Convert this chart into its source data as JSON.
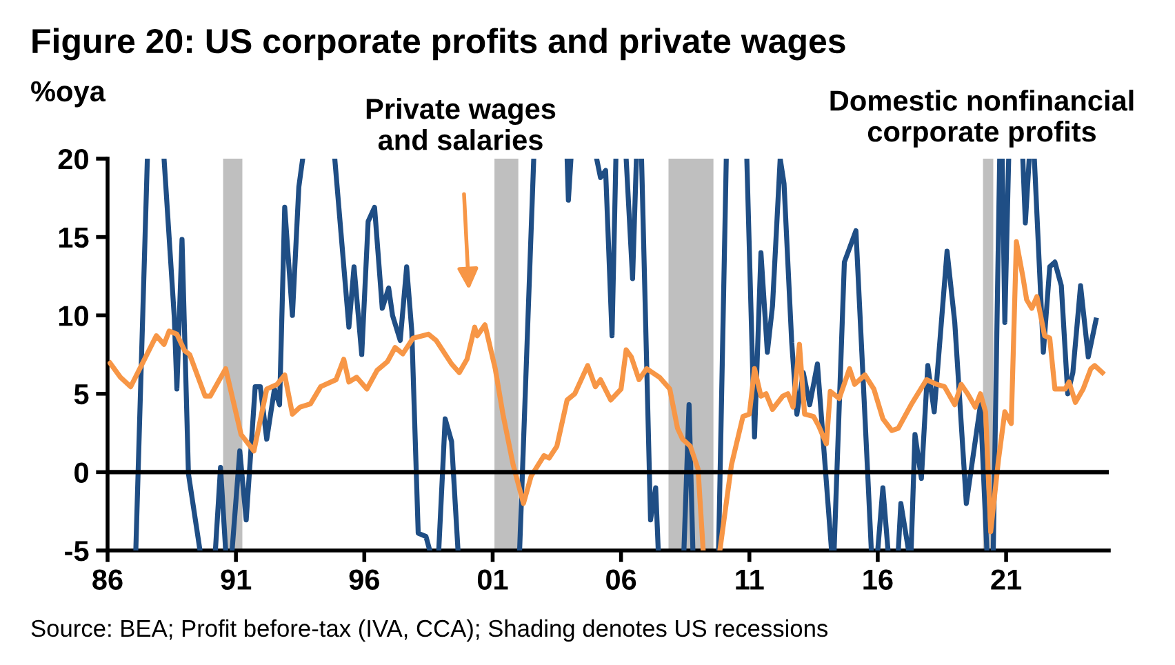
{
  "chart_data": {
    "type": "line",
    "title": "Figure 20: US corporate profits and private wages",
    "ylabel": "%oya",
    "xlim": [
      1986,
      2025
    ],
    "ylim": [
      -5,
      20
    ],
    "xticks": [
      {
        "value": 1986,
        "label": "86"
      },
      {
        "value": 1991,
        "label": "91"
      },
      {
        "value": 1996,
        "label": "96"
      },
      {
        "value": 2001,
        "label": "01"
      },
      {
        "value": 2006,
        "label": "06"
      },
      {
        "value": 2011,
        "label": "11"
      },
      {
        "value": 2016,
        "label": "16"
      },
      {
        "value": 2021,
        "label": "21"
      }
    ],
    "yticks": [
      -5,
      0,
      5,
      10,
      15,
      20
    ],
    "grid": false,
    "legend": false,
    "line_style": "solid",
    "ref_lines": [
      {
        "axis": "y",
        "value": 0,
        "label": null,
        "color": "#000000"
      }
    ],
    "bands": [
      {
        "axis": "x",
        "from": 1990.5,
        "to": 1991.25,
        "label": null,
        "color": "#bfbfbf"
      },
      {
        "axis": "x",
        "from": 2001.07,
        "to": 2002.0,
        "label": null,
        "color": "#bfbfbf"
      },
      {
        "axis": "x",
        "from": 2007.85,
        "to": 2009.6,
        "label": null,
        "color": "#bfbfbf"
      },
      {
        "axis": "x",
        "from": 2020.1,
        "to": 2020.5,
        "label": null,
        "color": "#bfbfbf"
      }
    ],
    "series": [
      {
        "color": "#1f4e85",
        "x": [
          1987.1,
          1987.55,
          1987.9,
          1988.2,
          1988.6,
          1988.7,
          1988.9,
          1989.15,
          1989.6,
          1989.9,
          1990.2,
          1990.4,
          1990.6,
          1990.7,
          1990.85,
          1991.15,
          1991.4,
          1991.75,
          1991.95,
          1992.2,
          1992.5,
          1992.7,
          1992.9,
          1993.2,
          1993.45,
          1993.6,
          1994.2,
          1994.85,
          1995.4,
          1995.6,
          1995.9,
          1996.15,
          1996.4,
          1996.7,
          1996.95,
          1997.1,
          1997.4,
          1997.65,
          1997.85,
          1998.1,
          1998.4,
          1998.55,
          1998.7,
          1998.9,
          1999.15,
          1999.4,
          1999.65,
          2000.8,
          2002.05,
          2002.6,
          2003.2,
          2003.9,
          2003.95,
          2004.05,
          2004.5,
          2005.05,
          2005.2,
          2005.4,
          2005.65,
          2005.8,
          2006.0,
          2006.2,
          2006.45,
          2006.6,
          2006.7,
          2006.8,
          2007.15,
          2007.35,
          2007.45,
          2008.0,
          2008.45,
          2008.65,
          2008.8,
          2009.3,
          2009.8,
          2010.1,
          2010.5,
          2010.9,
          2011.2,
          2011.45,
          2011.7,
          2011.9,
          2012.2,
          2012.35,
          2012.65,
          2012.85,
          2013.1,
          2013.35,
          2013.65,
          2014.2,
          2014.25,
          2014.3,
          2014.7,
          2015.15,
          2015.6,
          2015.75,
          2015.9,
          2016.0,
          2016.2,
          2016.4,
          2016.6,
          2016.8,
          2016.9,
          2017.2,
          2017.25,
          2017.3,
          2017.45,
          2017.7,
          2017.95,
          2018.2,
          2018.7,
          2019.0,
          2019.45,
          2020.0,
          2020.25,
          2020.4,
          2020.5,
          2020.75,
          2020.8,
          2020.85,
          2020.95,
          2021.1,
          2021.4,
          2021.65,
          2021.75,
          2021.9,
          2022.0,
          2022.1,
          2022.45,
          2022.7,
          2022.9,
          2023.15,
          2023.4,
          2023.6,
          2023.9,
          2024.2,
          2024.5
        ],
        "values": [
          -5,
          20,
          null,
          20,
          9.85,
          5.3,
          14.85,
          -0.1,
          -5,
          null,
          -5,
          0.3,
          -5,
          null,
          -5,
          1.35,
          -3.05,
          5.45,
          5.45,
          2.1,
          5.3,
          4.3,
          16.9,
          10.0,
          18.2,
          20,
          null,
          20,
          9.25,
          13.1,
          7.5,
          16.0,
          16.9,
          10.45,
          11.75,
          10.0,
          8.4,
          13.1,
          9.0,
          -3.9,
          -4.1,
          -5,
          null,
          -5,
          3.4,
          1.95,
          -5,
          null,
          -5,
          20,
          null,
          20,
          17.35,
          20,
          null,
          20,
          18.8,
          19.25,
          8.7,
          20,
          null,
          20,
          12.35,
          20,
          null,
          20,
          -3.05,
          -1.0,
          -5,
          null,
          -5,
          4.3,
          -5,
          null,
          -5,
          20,
          null,
          20,
          2.25,
          14.0,
          7.65,
          10.6,
          20,
          18.4,
          8.25,
          3.7,
          6.35,
          4.3,
          6.9,
          -5,
          null,
          -5,
          13.4,
          15.4,
          0.2,
          -5,
          null,
          -5,
          -1.0,
          -5,
          null,
          -5,
          -2.0,
          -5,
          null,
          -5,
          2.4,
          -0.4,
          6.8,
          3.85,
          14.1,
          9.55,
          -2.0,
          4.3,
          -5,
          null,
          -5,
          20,
          null,
          20,
          9.55,
          20,
          null,
          20,
          15.9,
          20,
          null,
          20,
          7.65,
          13.1,
          13.4,
          11.9,
          5.0,
          6.35,
          11.9,
          7.35,
          9.7
        ]
      },
      {
        "color": "#f79646",
        "x": [
          1986.1,
          1986.5,
          1986.9,
          1987.9,
          1988.2,
          1988.4,
          1988.7,
          1989.0,
          1989.2,
          1989.8,
          1990.0,
          1990.6,
          1991.2,
          1991.7,
          1992.2,
          1992.6,
          1992.9,
          1993.2,
          1993.5,
          1993.9,
          1994.3,
          1994.9,
          1995.2,
          1995.4,
          1995.7,
          1996.1,
          1996.5,
          1996.9,
          1997.2,
          1997.5,
          1997.9,
          1998.5,
          1998.8,
          1999.4,
          1999.7,
          2000.0,
          2000.3,
          2000.4,
          2000.7,
          2001.1,
          2001.4,
          2001.8,
          2002.2,
          2002.5,
          2003.0,
          2003.2,
          2003.5,
          2003.9,
          2004.2,
          2004.7,
          2005.0,
          2005.2,
          2005.6,
          2006.0,
          2006.2,
          2006.4,
          2006.7,
          2007.0,
          2007.5,
          2007.9,
          2008.2,
          2008.4,
          2008.7,
          2009.0,
          2009.2,
          2009.5,
          2009.85,
          2010.3,
          2010.75,
          2011.0,
          2011.2,
          2011.45,
          2011.65,
          2011.9,
          2012.3,
          2012.5,
          2012.7,
          2012.95,
          2013.15,
          2013.5,
          2013.7,
          2014.0,
          2014.15,
          2014.5,
          2014.9,
          2015.1,
          2015.5,
          2015.85,
          2016.2,
          2016.55,
          2016.8,
          2017.3,
          2017.9,
          2018.3,
          2018.6,
          2019.0,
          2019.25,
          2019.5,
          2019.8,
          2020.0,
          2020.2,
          2020.4,
          2020.7,
          2020.95,
          2021.2,
          2021.4,
          2021.65,
          2021.8,
          2022.0,
          2022.2,
          2022.5,
          2022.7,
          2022.9,
          2023.3,
          2023.45,
          2023.7,
          2024.0,
          2024.3,
          2024.45,
          2024.75
        ],
        "values": [
          6.95,
          6.05,
          5.45,
          8.7,
          8.15,
          9.0,
          8.8,
          7.75,
          7.5,
          4.85,
          4.85,
          6.6,
          2.4,
          1.35,
          5.3,
          5.6,
          6.2,
          3.7,
          4.15,
          4.35,
          5.45,
          5.9,
          7.2,
          5.75,
          6.05,
          5.3,
          6.5,
          7.05,
          7.95,
          7.55,
          8.55,
          8.8,
          8.4,
          6.9,
          6.35,
          7.2,
          9.25,
          8.7,
          9.4,
          6.6,
          3.7,
          0.45,
          -2.0,
          -0.25,
          1.05,
          0.9,
          1.65,
          4.6,
          5.0,
          6.8,
          5.45,
          5.9,
          4.6,
          5.3,
          7.8,
          7.35,
          5.9,
          6.6,
          6.05,
          5.3,
          2.8,
          2.1,
          1.65,
          0.2,
          -5,
          null,
          -5,
          0.45,
          3.55,
          3.7,
          6.6,
          4.85,
          5.0,
          4.0,
          4.85,
          5.0,
          4.15,
          8.15,
          3.7,
          3.55,
          2.95,
          1.8,
          5.15,
          4.7,
          6.6,
          5.6,
          6.2,
          5.3,
          3.4,
          2.65,
          2.8,
          4.3,
          5.9,
          5.6,
          5.45,
          4.3,
          5.6,
          5.0,
          4.15,
          5.0,
          3.85,
          -3.8,
          0.75,
          3.85,
          3.1,
          14.7,
          12.5,
          11.0,
          10.45,
          11.2,
          8.7,
          8.55,
          5.3,
          5.3,
          5.75,
          4.45,
          5.3,
          6.6,
          6.8,
          6.35
        ]
      }
    ],
    "annotations": [
      "Private wages\nand salaries",
      "Domestic nonfinancial\ncorporate profits",
      "Source: BEA; Profit before-tax (IVA, CCA); Shading denotes US recessions"
    ]
  }
}
